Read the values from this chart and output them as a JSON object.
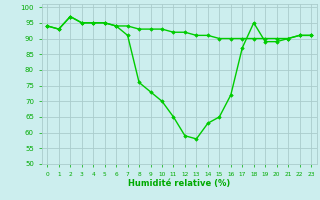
{
  "line1_x": [
    0,
    1,
    2,
    3,
    4,
    5,
    6,
    7,
    8,
    9,
    10,
    11,
    12,
    13,
    14,
    15,
    16,
    17,
    18,
    19,
    20,
    21,
    22,
    23
  ],
  "line1_y": [
    94,
    93,
    97,
    95,
    95,
    95,
    94,
    91,
    76,
    73,
    70,
    65,
    59,
    58,
    63,
    65,
    72,
    87,
    95,
    89,
    89,
    90,
    91,
    91
  ],
  "line2_x": [
    0,
    1,
    2,
    3,
    4,
    5,
    6,
    7,
    8,
    9,
    10,
    11,
    12,
    13,
    14,
    15,
    16,
    17,
    18,
    19,
    20,
    21,
    22,
    23
  ],
  "line2_y": [
    94,
    93,
    97,
    95,
    95,
    95,
    94,
    94,
    93,
    93,
    93,
    92,
    92,
    91,
    91,
    90,
    90,
    90,
    90,
    90,
    90,
    90,
    91,
    91
  ],
  "line_color": "#00cc00",
  "marker": "D",
  "marker_size": 1.8,
  "line_width": 1.0,
  "bg_color": "#cceeee",
  "grid_color": "#aacccc",
  "xlabel": "Humidité relative (%)",
  "xlabel_color": "#00aa00",
  "tick_color": "#00aa00",
  "ylim": [
    50,
    101
  ],
  "xlim": [
    -0.5,
    23.5
  ],
  "yticks": [
    50,
    55,
    60,
    65,
    70,
    75,
    80,
    85,
    90,
    95,
    100
  ],
  "xticks": [
    0,
    1,
    2,
    3,
    4,
    5,
    6,
    7,
    8,
    9,
    10,
    11,
    12,
    13,
    14,
    15,
    16,
    17,
    18,
    19,
    20,
    21,
    22,
    23
  ]
}
